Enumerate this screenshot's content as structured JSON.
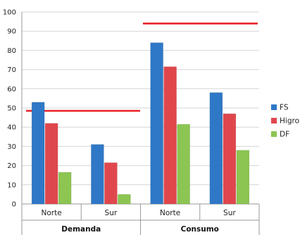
{
  "chart_data": {
    "type": "bar",
    "groups": [
      {
        "name": "Demanda",
        "categories": [
          "Norte",
          "Sur"
        ]
      },
      {
        "name": "Consumo",
        "categories": [
          "Norte",
          "Sur"
        ]
      }
    ],
    "categories": [
      "Norte",
      "Sur",
      "Norte",
      "Sur"
    ],
    "series": [
      {
        "name": "FS",
        "color": "#2f78c7",
        "values": [
          53,
          31,
          84,
          58
        ]
      },
      {
        "name": "Higro",
        "color": "#e0474c",
        "values": [
          42,
          21.5,
          71.5,
          47
        ]
      },
      {
        "name": "DF",
        "color": "#8cc552",
        "values": [
          16.5,
          5,
          41.5,
          28
        ]
      }
    ],
    "reference_lines": [
      {
        "group": "Demanda",
        "value": 48.5,
        "color": "#e8262b"
      },
      {
        "group": "Consumo",
        "value": 94,
        "color": "#e8262b"
      }
    ],
    "ylim": [
      0,
      100
    ],
    "yticks": [
      0,
      10,
      20,
      30,
      40,
      50,
      60,
      70,
      80,
      90,
      100
    ],
    "grid": true,
    "legend_position": "right",
    "title": "",
    "xlabel": "",
    "ylabel": ""
  }
}
